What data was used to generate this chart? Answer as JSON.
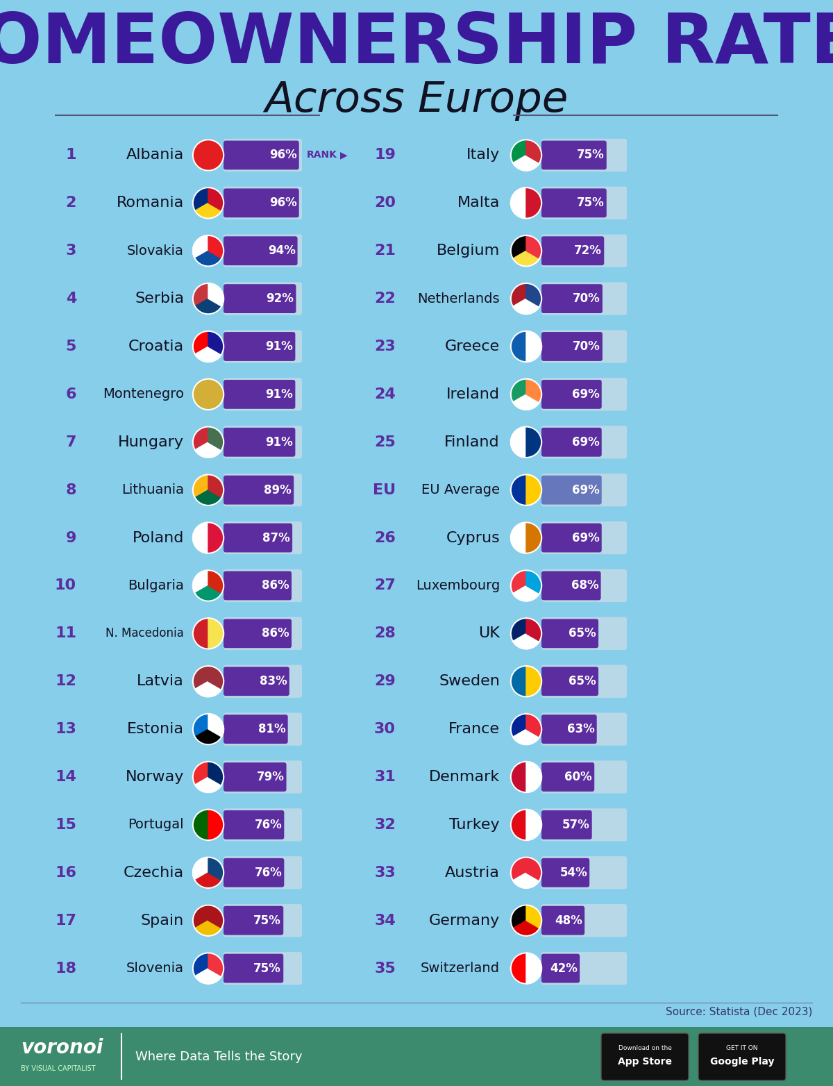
{
  "title_line1": "HOMEOWNERSHIP RATES",
  "title_line2": "Across Europe",
  "background_color": "#87CEEB",
  "bar_bg_color": "#B8D8E8",
  "bar_fill_color": "#5B2D9E",
  "eu_bar_color": "#6677BB",
  "footer_color": "#3D8B6E",
  "source_text": "Source: Statista (Dec 2023)",
  "title_color": "#3A1A9A",
  "subtitle_color": "#111122",
  "rank_label_color": "#5B2D9E",
  "country_label_color": "#111122",
  "left_countries": [
    {
      "rank": "1",
      "name": "Albania",
      "value": 96,
      "flag_colors": [
        "#E41E20",
        "#E41E20"
      ]
    },
    {
      "rank": "2",
      "name": "Romania",
      "value": 96,
      "flag_colors": [
        "#002B7F",
        "#FCD116",
        "#CE1126"
      ]
    },
    {
      "rank": "3",
      "name": "Slovakia",
      "value": 94,
      "flag_colors": [
        "#FFFFFF",
        "#0B4EA2",
        "#EE1C25"
      ]
    },
    {
      "rank": "4",
      "name": "Serbia",
      "value": 92,
      "flag_colors": [
        "#C6363C",
        "#0C4076",
        "#FFFFFF"
      ]
    },
    {
      "rank": "5",
      "name": "Croatia",
      "value": 91,
      "flag_colors": [
        "#FF0000",
        "#FFFFFF",
        "#171796"
      ]
    },
    {
      "rank": "6",
      "name": "Montenegro",
      "value": 91,
      "flag_colors": [
        "#D4AF37",
        "#D4AF37"
      ]
    },
    {
      "rank": "7",
      "name": "Hungary",
      "value": 91,
      "flag_colors": [
        "#CE2939",
        "#FFFFFF",
        "#477050"
      ]
    },
    {
      "rank": "8",
      "name": "Lithuania",
      "value": 89,
      "flag_colors": [
        "#FDB913",
        "#006A44",
        "#C1272D"
      ]
    },
    {
      "rank": "9",
      "name": "Poland",
      "value": 87,
      "flag_colors": [
        "#FFFFFF",
        "#DC143C"
      ]
    },
    {
      "rank": "10",
      "name": "Bulgaria",
      "value": 86,
      "flag_colors": [
        "#FFFFFF",
        "#00966E",
        "#D62612"
      ]
    },
    {
      "rank": "11",
      "name": "N. Macedonia",
      "value": 86,
      "flag_colors": [
        "#CE2028",
        "#F7E34F"
      ]
    },
    {
      "rank": "12",
      "name": "Latvia",
      "value": 83,
      "flag_colors": [
        "#9E3039",
        "#FFFFFF",
        "#9E3039"
      ]
    },
    {
      "rank": "13",
      "name": "Estonia",
      "value": 81,
      "flag_colors": [
        "#0072CE",
        "#000000",
        "#FFFFFF"
      ]
    },
    {
      "rank": "14",
      "name": "Norway",
      "value": 79,
      "flag_colors": [
        "#EF2B2D",
        "#FFFFFF",
        "#002868"
      ]
    },
    {
      "rank": "15",
      "name": "Portugal",
      "value": 76,
      "flag_colors": [
        "#006600",
        "#FF0000"
      ]
    },
    {
      "rank": "16",
      "name": "Czechia",
      "value": 76,
      "flag_colors": [
        "#FFFFFF",
        "#D7141A",
        "#11457E"
      ]
    },
    {
      "rank": "17",
      "name": "Spain",
      "value": 75,
      "flag_colors": [
        "#AA151B",
        "#F1BF00",
        "#AA151B"
      ]
    },
    {
      "rank": "18",
      "name": "Slovenia",
      "value": 75,
      "flag_colors": [
        "#003DA5",
        "#FFFFFF",
        "#EF3340"
      ]
    }
  ],
  "right_countries": [
    {
      "rank": "19",
      "name": "Italy",
      "value": 75,
      "is_eu": false,
      "flag_colors": [
        "#009246",
        "#FFFFFF",
        "#CE2B37"
      ]
    },
    {
      "rank": "20",
      "name": "Malta",
      "value": 75,
      "is_eu": false,
      "flag_colors": [
        "#FFFFFF",
        "#CF142B"
      ]
    },
    {
      "rank": "21",
      "name": "Belgium",
      "value": 72,
      "is_eu": false,
      "flag_colors": [
        "#000000",
        "#FAE042",
        "#EF3340"
      ]
    },
    {
      "rank": "22",
      "name": "Netherlands",
      "value": 70,
      "is_eu": false,
      "flag_colors": [
        "#AE1C28",
        "#FFFFFF",
        "#21468B"
      ]
    },
    {
      "rank": "23",
      "name": "Greece",
      "value": 70,
      "is_eu": false,
      "flag_colors": [
        "#0D5EAF",
        "#FFFFFF"
      ]
    },
    {
      "rank": "24",
      "name": "Ireland",
      "value": 69,
      "is_eu": false,
      "flag_colors": [
        "#169B62",
        "#FFFFFF",
        "#FF883E"
      ]
    },
    {
      "rank": "25",
      "name": "Finland",
      "value": 69,
      "is_eu": false,
      "flag_colors": [
        "#FFFFFF",
        "#003580"
      ]
    },
    {
      "rank": "EU",
      "name": "EU Average",
      "value": 69,
      "is_eu": true,
      "flag_colors": [
        "#003399",
        "#FFCC00"
      ]
    },
    {
      "rank": "26",
      "name": "Cyprus",
      "value": 69,
      "is_eu": false,
      "flag_colors": [
        "#FFFFFF",
        "#D47600"
      ]
    },
    {
      "rank": "27",
      "name": "Luxembourg",
      "value": 68,
      "is_eu": false,
      "flag_colors": [
        "#EF3340",
        "#FFFFFF",
        "#00A3E0"
      ]
    },
    {
      "rank": "28",
      "name": "UK",
      "value": 65,
      "is_eu": false,
      "flag_colors": [
        "#012169",
        "#FFFFFF",
        "#C8102E"
      ]
    },
    {
      "rank": "29",
      "name": "Sweden",
      "value": 65,
      "is_eu": false,
      "flag_colors": [
        "#006AA7",
        "#FECC02"
      ]
    },
    {
      "rank": "30",
      "name": "France",
      "value": 63,
      "is_eu": false,
      "flag_colors": [
        "#002395",
        "#FFFFFF",
        "#ED2939"
      ]
    },
    {
      "rank": "31",
      "name": "Denmark",
      "value": 60,
      "is_eu": false,
      "flag_colors": [
        "#C60C30",
        "#FFFFFF"
      ]
    },
    {
      "rank": "32",
      "name": "Turkey",
      "value": 57,
      "is_eu": false,
      "flag_colors": [
        "#E30A17",
        "#FFFFFF"
      ]
    },
    {
      "rank": "33",
      "name": "Austria",
      "value": 54,
      "is_eu": false,
      "flag_colors": [
        "#ED2939",
        "#FFFFFF",
        "#ED2939"
      ]
    },
    {
      "rank": "34",
      "name": "Germany",
      "value": 48,
      "is_eu": false,
      "flag_colors": [
        "#000000",
        "#DD0000",
        "#FFCE00"
      ]
    },
    {
      "rank": "35",
      "name": "Switzerland",
      "value": 42,
      "is_eu": false,
      "flag_colors": [
        "#FF0000",
        "#FFFFFF"
      ]
    }
  ]
}
